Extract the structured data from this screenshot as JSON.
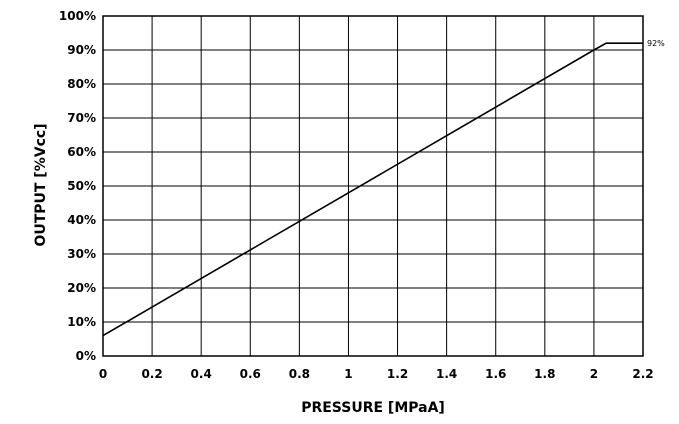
{
  "chart_data": {
    "type": "line",
    "title": "",
    "xlabel": "PRESSURE [MPaA]",
    "ylabel": "OUTPUT  [%Vcc]",
    "xlim": [
      0,
      2.2
    ],
    "ylim": [
      0,
      100
    ],
    "grid": true,
    "x_ticks": [
      0,
      0.2,
      0.4,
      0.6,
      0.8,
      1,
      1.2,
      1.4,
      1.6,
      1.8,
      2,
      2.2
    ],
    "x_tick_labels": [
      "0",
      "0.2",
      "0.4",
      "0.6",
      "0.8",
      "1",
      "1.2",
      "1.4",
      "1.6",
      "1.8",
      "2",
      "2.2"
    ],
    "y_ticks": [
      0,
      10,
      20,
      30,
      40,
      50,
      60,
      70,
      80,
      90,
      100
    ],
    "y_tick_labels": [
      "0%",
      "10%",
      "20%",
      "30%",
      "40%",
      "50%",
      "60%",
      "70%",
      "80%",
      "90%",
      "100%"
    ],
    "series": [
      {
        "x": [
          0,
          2.0,
          2.05,
          2.2
        ],
        "y": [
          6,
          90,
          92,
          92
        ]
      }
    ],
    "annotations": [
      {
        "text": "92%",
        "x": 2.2,
        "y": 92
      }
    ]
  }
}
